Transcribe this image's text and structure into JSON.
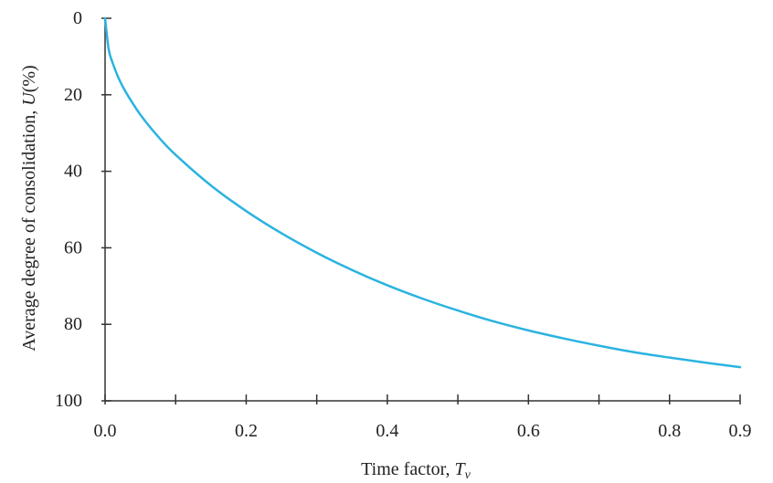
{
  "chart_data": {
    "type": "line",
    "title": "",
    "xlabel": "Time factor, ",
    "xlabel_var": "T",
    "xlabel_sub": "v",
    "ylabel": "Average degree of consolidation, ",
    "ylabel_var": "U",
    "ylabel_unit": "(%)",
    "xlim": [
      0,
      0.9
    ],
    "ylim": [
      0,
      100
    ],
    "y_inverted": true,
    "grid": false,
    "x_ticks": [
      0.0,
      0.1,
      0.2,
      0.3,
      0.4,
      0.5,
      0.6,
      0.7,
      0.8,
      0.9
    ],
    "x_tick_labels": [
      {
        "value": 0.0,
        "text": "0.0"
      },
      {
        "value": 0.2,
        "text": "0.2"
      },
      {
        "value": 0.4,
        "text": "0.4"
      },
      {
        "value": 0.6,
        "text": "0.6"
      },
      {
        "value": 0.8,
        "text": "0.8"
      },
      {
        "value": 0.9,
        "text": "0.9"
      }
    ],
    "y_tick_labels": [
      {
        "value": 0,
        "text": "0"
      },
      {
        "value": 20,
        "text": "20"
      },
      {
        "value": 40,
        "text": "40"
      },
      {
        "value": 60,
        "text": "60"
      },
      {
        "value": 80,
        "text": "80"
      },
      {
        "value": 100,
        "text": "100"
      }
    ],
    "series": [
      {
        "color": "#2bb3e0",
        "x": [
          0,
          0.005,
          0.01,
          0.02,
          0.03,
          0.05,
          0.075,
          0.1,
          0.15,
          0.2,
          0.25,
          0.3,
          0.35,
          0.4,
          0.45,
          0.5,
          0.55,
          0.6,
          0.65,
          0.7,
          0.75,
          0.8,
          0.85,
          0.9
        ],
        "y": [
          0,
          8,
          11.3,
          16,
          19.5,
          25.2,
          30.9,
          35.7,
          43.7,
          50.4,
          56.2,
          61.3,
          65.8,
          69.8,
          73.3,
          76.4,
          79.2,
          81.6,
          83.7,
          85.6,
          87.3,
          88.7,
          90.0,
          91.2
        ]
      }
    ]
  }
}
